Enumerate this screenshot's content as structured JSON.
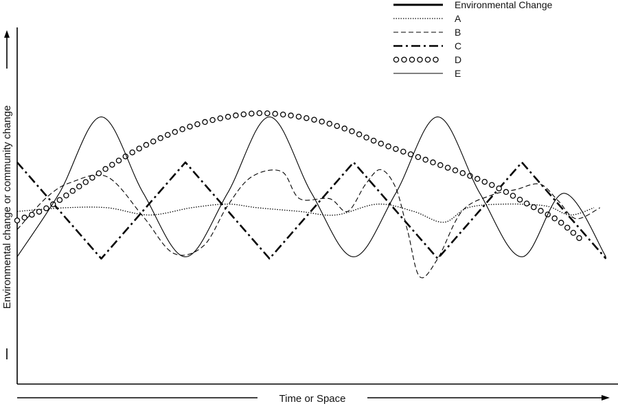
{
  "chart_data": {
    "type": "line",
    "xlabel": "Time or Space",
    "ylabel": "Environmental change or community change",
    "xlim": [
      0,
      100
    ],
    "ylim": [
      0,
      100
    ],
    "grid": false,
    "legend_position": "top-right",
    "series": [
      {
        "name": "Environmental Change",
        "style": "solid-thick",
        "x": [],
        "y": []
      },
      {
        "name": "A",
        "style": "dotted",
        "x": [
          0,
          8,
          15,
          22,
          29,
          35,
          40,
          47,
          53,
          60,
          66,
          71,
          75,
          81,
          88,
          92,
          96
        ],
        "y": [
          47.5,
          48.5,
          48.5,
          46.5,
          48.5,
          49.5,
          48.5,
          47.5,
          46.5,
          49.5,
          47.5,
          44.5,
          48.5,
          49.5,
          49,
          46.5,
          48.5
        ]
      },
      {
        "name": "B",
        "style": "dashed",
        "x": [
          0,
          5,
          9,
          15,
          21,
          26,
          31,
          35,
          39,
          44,
          47,
          52,
          55,
          58,
          60.5,
          63,
          65,
          67,
          70,
          74,
          79,
          83,
          87,
          90,
          93,
          97
        ],
        "y": [
          42.5,
          51.5,
          55.5,
          57,
          46,
          36,
          38,
          49,
          57,
          58.5,
          51,
          51,
          47.5,
          55,
          59,
          54,
          42,
          29.5,
          34.5,
          47.5,
          52,
          53.5,
          55,
          50.5,
          45.5,
          48.5
        ]
      },
      {
        "name": "C",
        "style": "dash-dot-thick",
        "x": [
          0,
          14,
          28,
          42,
          56,
          70,
          84,
          98
        ],
        "y": [
          61,
          34.5,
          61,
          34.5,
          61,
          34.5,
          61,
          34.5
        ]
      },
      {
        "name": "D",
        "style": "circles",
        "x": [
          0,
          5,
          10,
          15,
          20,
          25,
          30,
          35,
          40,
          45,
          50,
          55,
          60,
          65,
          70,
          75,
          80,
          85,
          90,
          94
        ],
        "y": [
          45,
          48.5,
          54,
          59.5,
          64.5,
          68.5,
          71.5,
          73.5,
          74.5,
          74,
          72.5,
          70,
          66.5,
          63.5,
          60.5,
          57.5,
          54,
          49.5,
          45,
          39.5
        ]
      },
      {
        "name": "E",
        "style": "solid-thin",
        "x": [
          0,
          7,
          14,
          21,
          28,
          35,
          42,
          49,
          56,
          63,
          70,
          77,
          84,
          91,
          98
        ],
        "y": [
          35,
          52.5,
          73.5,
          52.5,
          35,
          52.5,
          73.5,
          52.5,
          35,
          52.5,
          73.5,
          52.5,
          35,
          52.5,
          35
        ]
      }
    ]
  }
}
